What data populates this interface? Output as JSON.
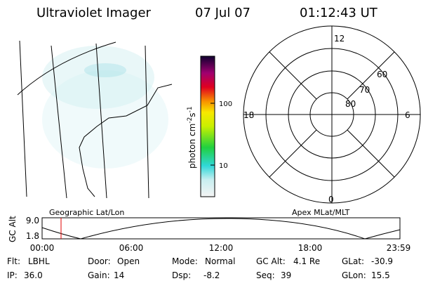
{
  "header": {
    "title": "Ultraviolet Imager",
    "date": "07 Jul 07",
    "time": "01:12:43 UT"
  },
  "colorbar": {
    "unit": "photon cm",
    "exp1": "-2",
    "unit2": "s",
    "exp2": "-1",
    "ticks": [
      "100",
      "10"
    ]
  },
  "polar": {
    "hours": [
      "12",
      "6",
      "0",
      "18"
    ],
    "latitudes": [
      "60",
      "70",
      "80"
    ]
  },
  "panels": {
    "left": "Geographic Lat/Lon",
    "right": "Apex MLat/MLT"
  },
  "timeline": {
    "ylabel": "GC Alt",
    "yticks": [
      "9.0",
      "1.8"
    ],
    "xticks": [
      "00:00",
      "06:00",
      "12:00",
      "18:00",
      "23:59"
    ]
  },
  "info": [
    [
      {
        "label": "Flt:",
        "value": "LBHL"
      },
      {
        "label": "Door:",
        "value": "Open"
      },
      {
        "label": "Mode:",
        "value": "Normal"
      },
      {
        "label": "GC Alt:",
        "value": "4.1 Re"
      },
      {
        "label": "GLat:",
        "value": "-30.9"
      }
    ],
    [
      {
        "label": "IP:",
        "value": "36.0"
      },
      {
        "label": "Gain:",
        "value": "14"
      },
      {
        "label": "Dsp:",
        "value": "-8.2"
      },
      {
        "label": "Seq:",
        "value": "39"
      },
      {
        "label": "GLon:",
        "value": "15.5"
      }
    ]
  ]
}
